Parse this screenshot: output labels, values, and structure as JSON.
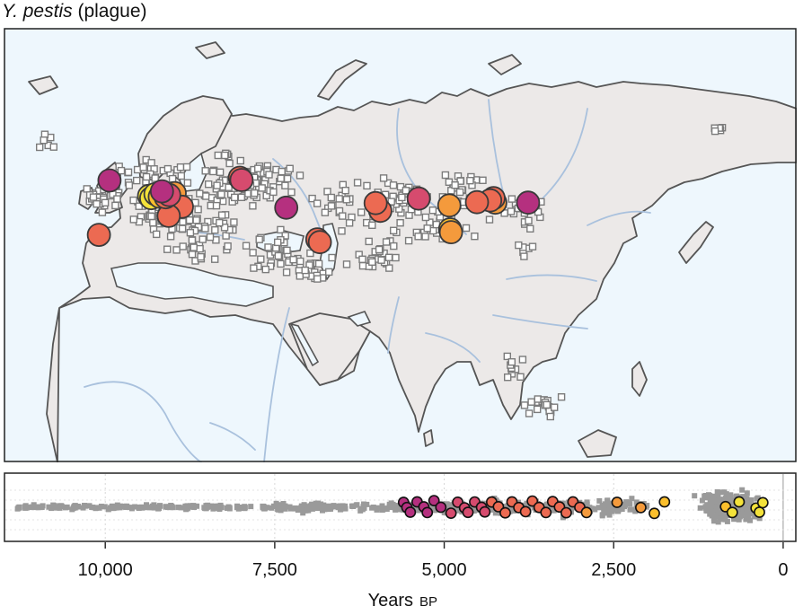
{
  "title": {
    "italic": "Y. pestis",
    "rest": "(plague)"
  },
  "colors": {
    "ocean": "#eef7fd",
    "land": "#ece9e8",
    "coast": "#555555",
    "river": "#a9c1dd",
    "sample_square": "#7b7b7b",
    "timeline_square": "#9a9a9a",
    "color_scale": [
      "#b5307f",
      "#d64b6e",
      "#ec6a52",
      "#f49a3c",
      "#fbbf2c",
      "#f4e23a"
    ]
  },
  "icons": {
    "site": "square-marker-icon",
    "pathogen": "circle-marker-icon"
  },
  "pathogen_sites": [
    {
      "lon": -5.8,
      "lat": 55.2,
      "age_bp": 5000
    },
    {
      "lon": -8.3,
      "lat": 43.2,
      "age_bp": 4000
    },
    {
      "lon": 3.5,
      "lat": 51.8,
      "age_bp": 400
    },
    {
      "lon": 4.0,
      "lat": 51.3,
      "age_bp": 600
    },
    {
      "lon": 5.0,
      "lat": 52.2,
      "age_bp": 700
    },
    {
      "lon": 6.0,
      "lat": 51.6,
      "age_bp": 1700
    },
    {
      "lon": 6.5,
      "lat": 52.8,
      "age_bp": 5200
    },
    {
      "lon": 7.4,
      "lat": 51.5,
      "age_bp": 3900
    },
    {
      "lon": 8.2,
      "lat": 52.0,
      "age_bp": 4600
    },
    {
      "lon": 9.5,
      "lat": 52.4,
      "age_bp": 2000
    },
    {
      "lon": 11.2,
      "lat": 49.4,
      "age_bp": 3300
    },
    {
      "lon": 8.1,
      "lat": 47.4,
      "age_bp": 3600
    },
    {
      "lon": 24.8,
      "lat": 55.8,
      "age_bp": 4200
    },
    {
      "lon": 25.2,
      "lat": 55.3,
      "age_bp": 4700
    },
    {
      "lon": 35.7,
      "lat": 49.2,
      "age_bp": 5400
    },
    {
      "lon": 43.0,
      "lat": 42.2,
      "age_bp": 3100
    },
    {
      "lon": 43.6,
      "lat": 41.6,
      "age_bp": 3400
    },
    {
      "lon": 56.7,
      "lat": 50.2,
      "age_bp": 4100
    },
    {
      "lon": 57.8,
      "lat": 48.5,
      "age_bp": 3800
    },
    {
      "lon": 66.8,
      "lat": 51.2,
      "age_bp": 4900
    },
    {
      "lon": 74.0,
      "lat": 49.7,
      "age_bp": 2300
    },
    {
      "lon": 74.4,
      "lat": 43.8,
      "age_bp": 2600
    },
    {
      "lon": 74.2,
      "lat": 44.4,
      "age_bp": 1900
    },
    {
      "lon": 80.5,
      "lat": 50.4,
      "age_bp": 4300
    },
    {
      "lon": 83.6,
      "lat": 50.8,
      "age_bp": 3700
    },
    {
      "lon": 84.4,
      "lat": 51.3,
      "age_bp": 3500
    },
    {
      "lon": 84.8,
      "lat": 50.3,
      "age_bp": 2900
    },
    {
      "lon": 92.5,
      "lat": 50.3,
      "age_bp": 5100
    }
  ],
  "timeline": {
    "xlabel_main": "Years",
    "xlabel_unit": "BP",
    "xlim": [
      11500,
      -200
    ],
    "ticks": [
      {
        "value": 10000,
        "label": "10,000"
      },
      {
        "value": 7500,
        "label": "7,500"
      },
      {
        "value": 5000,
        "label": "5,000"
      },
      {
        "value": 2500,
        "label": "2,500"
      },
      {
        "value": 0,
        "label": "0"
      }
    ],
    "circle_ages": [
      5600,
      5550,
      5500,
      5400,
      5300,
      5250,
      5150,
      5050,
      4900,
      4800,
      4700,
      4650,
      4550,
      4450,
      4400,
      4300,
      4200,
      4100,
      4000,
      3900,
      3800,
      3700,
      3600,
      3500,
      3400,
      3300,
      3200,
      3100,
      3000,
      2900,
      2450,
      2100,
      1900,
      1750,
      850,
      750,
      650,
      400,
      350,
      300
    ]
  }
}
